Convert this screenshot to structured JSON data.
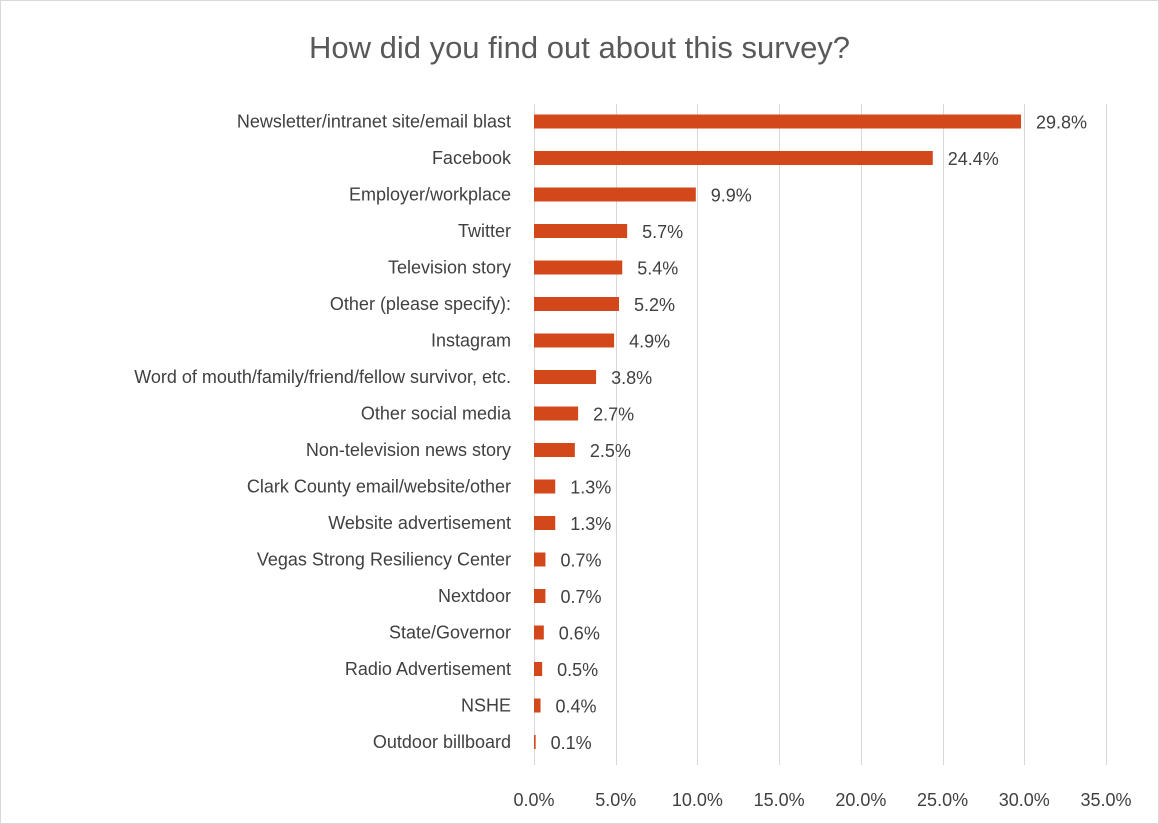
{
  "chart_data": {
    "type": "bar",
    "orientation": "horizontal",
    "title": "How did you find out about this survey?",
    "categories": [
      "Newsletter/intranet site/email blast",
      "Facebook",
      "Employer/workplace",
      "Twitter",
      "Television story",
      "Other (please specify):",
      "Instagram",
      "Word of mouth/family/friend/fellow survivor, etc.",
      "Other social media",
      "Non-television news story",
      "Clark County email/website/other",
      "Website advertisement",
      "Vegas Strong Resiliency Center",
      "Nextdoor",
      "State/Governor",
      "Radio Advertisement",
      "NSHE",
      "Outdoor billboard"
    ],
    "values": [
      29.8,
      24.4,
      9.9,
      5.7,
      5.4,
      5.2,
      4.9,
      3.8,
      2.7,
      2.5,
      1.3,
      1.3,
      0.7,
      0.7,
      0.6,
      0.5,
      0.4,
      0.1
    ],
    "data_labels": [
      "29.8%",
      "24.4%",
      "9.9%",
      "5.7%",
      "5.4%",
      "5.2%",
      "4.9%",
      "3.8%",
      "2.7%",
      "2.5%",
      "1.3%",
      "1.3%",
      "0.7%",
      "0.7%",
      "0.6%",
      "0.5%",
      "0.4%",
      "0.1%"
    ],
    "xlim": [
      0,
      35
    ],
    "x_ticks": [
      0,
      5,
      10,
      15,
      20,
      25,
      30,
      35
    ],
    "x_tick_labels": [
      "0.0%",
      "5.0%",
      "10.0%",
      "15.0%",
      "20.0%",
      "25.0%",
      "30.0%",
      "35.0%"
    ],
    "xlabel": "",
    "ylabel": "",
    "grid": "vertical",
    "legend": "none",
    "bar_color": "#d2481a",
    "grid_color": "#d9d9d9",
    "text_color": "#404040"
  }
}
